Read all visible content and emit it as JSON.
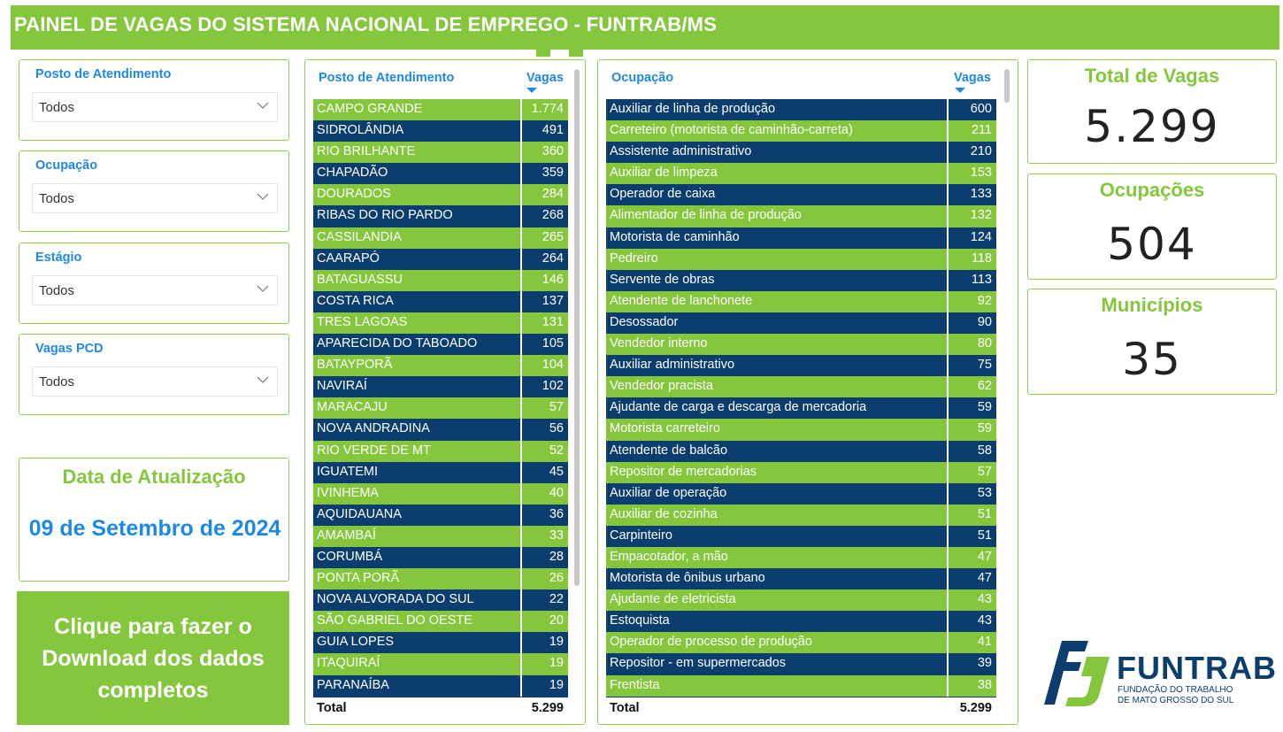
{
  "header": {
    "title": "PAINEL DE VAGAS DO SISTEMA NACIONAL DE EMPREGO - FUNTRAB/MS"
  },
  "filters": [
    {
      "label": "Posto de Atendimento",
      "value": "Todos"
    },
    {
      "label": "Ocupação",
      "value": "Todos"
    },
    {
      "label": "Estágio",
      "value": "Todos"
    },
    {
      "label": "Vagas PCD",
      "value": "Todos"
    }
  ],
  "update": {
    "title": "Data de Atualização",
    "date": "09 de Setembro de 2024"
  },
  "download": {
    "label": "Clique para fazer o Download dos dados completos"
  },
  "postos_table": {
    "col1": "Posto de Atendimento",
    "col2": "Vagas",
    "rows": [
      {
        "name": "CAMPO GRANDE",
        "value": "1.774"
      },
      {
        "name": "SIDROLÂNDIA",
        "value": "491"
      },
      {
        "name": "RIO BRILHANTE",
        "value": "360"
      },
      {
        "name": "CHAPADÃO",
        "value": "359"
      },
      {
        "name": "DOURADOS",
        "value": "284"
      },
      {
        "name": "RIBAS DO RIO PARDO",
        "value": "268"
      },
      {
        "name": "CASSILANDIA",
        "value": "265"
      },
      {
        "name": "CAARAPÓ",
        "value": "264"
      },
      {
        "name": "BATAGUASSU",
        "value": "146"
      },
      {
        "name": "COSTA RICA",
        "value": "137"
      },
      {
        "name": "TRES LAGOAS",
        "value": "131"
      },
      {
        "name": "APARECIDA DO TABOADO",
        "value": "105"
      },
      {
        "name": "BATAYPORÃ",
        "value": "104"
      },
      {
        "name": "NAVIRAÍ",
        "value": "102"
      },
      {
        "name": "MARACAJU",
        "value": "57"
      },
      {
        "name": "NOVA ANDRADINA",
        "value": "56"
      },
      {
        "name": "RIO VERDE DE MT",
        "value": "52"
      },
      {
        "name": "IGUATEMI",
        "value": "45"
      },
      {
        "name": "IVINHEMA",
        "value": "40"
      },
      {
        "name": "AQUIDAUANA",
        "value": "36"
      },
      {
        "name": "AMAMBAÍ",
        "value": "33"
      },
      {
        "name": "CORUMBÁ",
        "value": "28"
      },
      {
        "name": "PONTA PORÃ",
        "value": "26"
      },
      {
        "name": "NOVA ALVORADA DO SUL",
        "value": "22"
      },
      {
        "name": "SÃO GABRIEL DO OESTE",
        "value": "20"
      },
      {
        "name": "GUIA LOPES",
        "value": "19"
      },
      {
        "name": "ITAQUIRAÍ",
        "value": "19"
      },
      {
        "name": "PARANAÍBA",
        "value": "19"
      }
    ],
    "total_label": "Total",
    "total_value": "5.299"
  },
  "ocupacao_table": {
    "col1": "Ocupação",
    "col2": "Vagas",
    "rows": [
      {
        "name": "Auxiliar de linha de produção",
        "value": "600"
      },
      {
        "name": "Carreteiro (motorista de caminhão-carreta)",
        "value": "211"
      },
      {
        "name": "Assistente administrativo",
        "value": "210"
      },
      {
        "name": "Auxiliar de limpeza",
        "value": "153"
      },
      {
        "name": "Operador de caixa",
        "value": "133"
      },
      {
        "name": "Alimentador de linha de produção",
        "value": "132"
      },
      {
        "name": "Motorista de caminhão",
        "value": "124"
      },
      {
        "name": "Pedreiro",
        "value": "118"
      },
      {
        "name": "Servente de obras",
        "value": "113"
      },
      {
        "name": "Atendente de lanchonete",
        "value": "92"
      },
      {
        "name": "Desossador",
        "value": "90"
      },
      {
        "name": "Vendedor interno",
        "value": "80"
      },
      {
        "name": "Auxiliar administrativo",
        "value": "75"
      },
      {
        "name": "Vendedor pracista",
        "value": "62"
      },
      {
        "name": "Ajudante de carga e descarga de mercadoria",
        "value": "59"
      },
      {
        "name": "Motorista carreteiro",
        "value": "59"
      },
      {
        "name": "Atendente de balcão",
        "value": "58"
      },
      {
        "name": "Repositor de mercadorias",
        "value": "57"
      },
      {
        "name": "Auxiliar de operação",
        "value": "53"
      },
      {
        "name": "Auxiliar de cozinha",
        "value": "51"
      },
      {
        "name": "Carpinteiro",
        "value": "51"
      },
      {
        "name": "Empacotador, a mão",
        "value": "47"
      },
      {
        "name": "Motorista de ônibus urbano",
        "value": "47"
      },
      {
        "name": "Ajudante de eletricista",
        "value": "43"
      },
      {
        "name": "Estoquista",
        "value": "43"
      },
      {
        "name": "Operador de processo de produção",
        "value": "41"
      },
      {
        "name": "Repositor - em supermercados",
        "value": "39"
      },
      {
        "name": "Frentista",
        "value": "38"
      }
    ],
    "total_label": "Total",
    "total_value": "5.299"
  },
  "kpis": {
    "total_vagas": {
      "label": "Total de Vagas",
      "value": "5.299"
    },
    "ocupacoes": {
      "label": "Ocupações",
      "value": "504"
    },
    "municipios": {
      "label": "Municípios",
      "value": "35"
    }
  },
  "logo": {
    "name": "FUNTRAB",
    "subtitle_line1": "FUNDAÇÃO DO TRABALHO",
    "subtitle_line2": "DE MATO GROSSO DO SUL"
  },
  "colors": {
    "green": "#84c63c",
    "navy": "#0b3e6e",
    "blue": "#1e88e5"
  }
}
